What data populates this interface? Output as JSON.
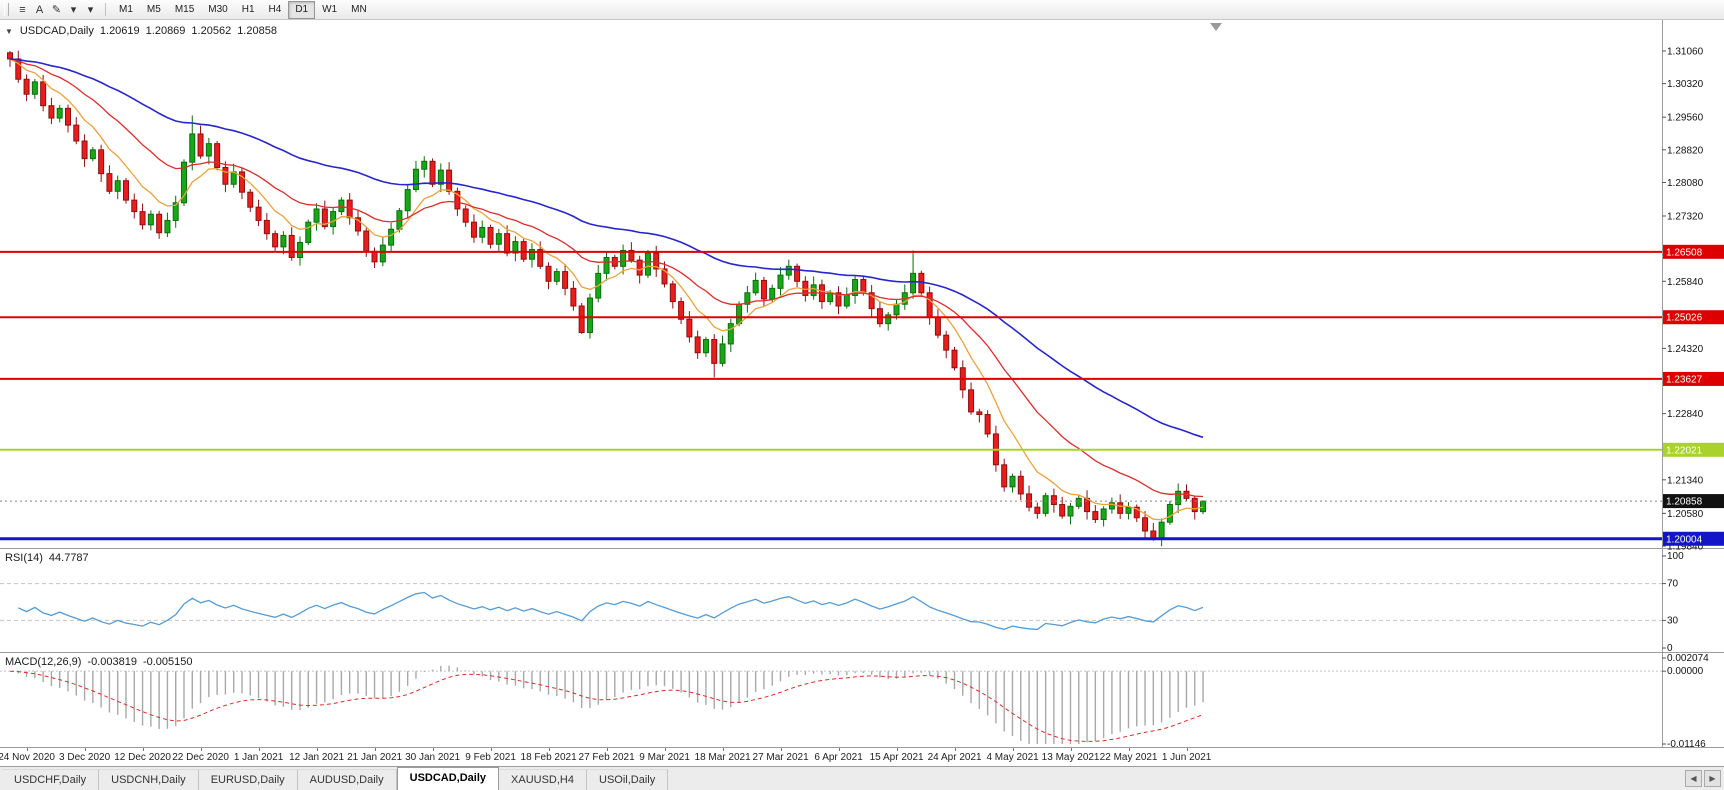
{
  "toolbar": {
    "icons": [
      {
        "name": "menu-icon",
        "glyph": "≡"
      },
      {
        "name": "text-tool-icon",
        "glyph": "A"
      },
      {
        "name": "draw-tool-icon",
        "glyph": "✎"
      },
      {
        "name": "draw-tool-dropdown-icon",
        "glyph": "▾"
      },
      {
        "name": "indicator-dropdown-icon",
        "glyph": "▾"
      }
    ],
    "timeframes": [
      "M1",
      "M5",
      "M15",
      "M30",
      "H1",
      "H4",
      "D1",
      "W1",
      "MN"
    ],
    "active_timeframe": "D1"
  },
  "chart": {
    "symbol": "USDCAD,Daily",
    "open": "1.20619",
    "high": "1.20869",
    "low": "1.20562",
    "close": "1.20858",
    "scale_ticks": [
      "1.31060",
      "1.30320",
      "1.29560",
      "1.28820",
      "1.28080",
      "1.27320",
      "1.25840",
      "1.24320",
      "1.22840",
      "1.21340",
      "1.20580",
      "1.19840"
    ],
    "hlines": [
      {
        "price": 1.26508,
        "label": "1.26508",
        "color": "#dd0000",
        "width": 2
      },
      {
        "price": 1.25026,
        "label": "1.25026",
        "color": "#dd0000",
        "width": 2
      },
      {
        "price": 1.23627,
        "label": "1.23627",
        "color": "#dd0000",
        "width": 2
      },
      {
        "price": 1.22021,
        "label": "1.22021",
        "color": "#a9d32b",
        "width": 2
      },
      {
        "price": 1.20004,
        "label": "1.20004",
        "color": "#1414c8",
        "width": 3
      }
    ],
    "current_price": {
      "price": 1.20858,
      "label": "1.20858",
      "bg": "#111111"
    },
    "candle_closes": [
      1.3088,
      1.3042,
      1.3008,
      1.3036,
      1.2982,
      1.2954,
      1.2976,
      1.2938,
      1.2902,
      1.2862,
      1.2882,
      1.2828,
      1.2788,
      1.2812,
      1.2768,
      1.2742,
      1.2712,
      1.2736,
      1.2694,
      1.2722,
      1.2762,
      1.2854,
      1.2918,
      1.2868,
      1.2896,
      1.2842,
      1.2804,
      1.2832,
      1.2786,
      1.2752,
      1.2722,
      1.2692,
      1.2662,
      1.2688,
      1.2638,
      1.2672,
      1.2718,
      1.2748,
      1.2708,
      1.2742,
      1.2768,
      1.2728,
      1.2698,
      1.2652,
      1.2628,
      1.2666,
      1.2702,
      1.2744,
      1.2792,
      1.2838,
      1.2856,
      1.2804,
      1.2836,
      1.2788,
      1.2748,
      1.2718,
      1.2684,
      1.2706,
      1.2668,
      1.2692,
      1.2648,
      1.2674,
      1.2634,
      1.2656,
      1.2618,
      1.2584,
      1.2606,
      1.2568,
      1.2528,
      1.2468,
      1.2546,
      1.2602,
      1.2638,
      1.2618,
      1.2654,
      1.2632,
      1.2598,
      1.2648,
      1.2612,
      1.2578,
      1.2538,
      1.2498,
      1.2458,
      1.2422,
      1.2452,
      1.2398,
      1.2442,
      1.2488,
      1.2532,
      1.2558,
      1.2586,
      1.2544,
      1.2568,
      1.2598,
      1.2618,
      1.2584,
      1.2552,
      1.2576,
      1.2538,
      1.2558,
      1.2528,
      1.2552,
      1.2588,
      1.2558,
      1.2522,
      1.2488,
      1.2508,
      1.2532,
      1.2558,
      1.2602,
      1.2558,
      1.2502,
      1.2462,
      1.2428,
      1.2388,
      1.2338,
      1.2288,
      1.2282,
      1.2238,
      1.2168,
      1.2118,
      1.2142,
      1.2102,
      1.2072,
      1.2058,
      1.2098,
      1.2078,
      1.2052,
      1.2074,
      1.2092,
      1.2062,
      1.2044,
      1.2068,
      1.2082,
      1.2058,
      1.2072,
      1.2048,
      1.2018,
      1.2002,
      1.2038,
      1.2078,
      1.2108,
      1.2092,
      1.2062,
      1.20858
    ],
    "candle_overrides": {
      "0": {
        "o": 1.3102,
        "h": 1.3106
      },
      "22": {
        "h": 1.296
      },
      "69": {
        "l": 1.2465
      },
      "85": {
        "l": 1.2366
      },
      "109": {
        "h": 1.2654
      },
      "124": {
        "l": 1.2046
      },
      "138": {
        "l": 1.1996
      },
      "144": {
        "o": 1.20619,
        "h": 1.20869,
        "l": 1.20562,
        "c": 1.20858
      }
    },
    "ma_colors": {
      "fast": "#e8a33c",
      "medium": "#dd2c2c",
      "slow": "#2626cc"
    },
    "candle_colors": {
      "up_fill": "#17a817",
      "up_edge": "#0a6e0a",
      "down_fill": "#ea1c1c",
      "down_edge": "#8e0f0f"
    }
  },
  "rsi": {
    "label": "RSI(14)",
    "value": "44.7787",
    "scale": [
      "100",
      "70",
      "30",
      "0"
    ],
    "levels": [
      70,
      30
    ],
    "line_color": "#569bd2"
  },
  "macd": {
    "label": "MACD(12,26,9)",
    "value1": "-0.003819",
    "value2": "-0.005150",
    "scale": [
      "0.002074",
      "0.00000",
      "-0.01146"
    ],
    "range": [
      -0.01146,
      0.002074
    ],
    "histogram_color": "#a8a8a8",
    "signal_color": "#dd2c2c"
  },
  "dates": [
    "24 Nov 2020",
    "3 Dec 2020",
    "12 Dec 2020",
    "22 Dec 2020",
    "1 Jan 2021",
    "12 Jan 2021",
    "21 Jan 2021",
    "30 Jan 2021",
    "9 Feb 2021",
    "18 Feb 2021",
    "27 Feb 2021",
    "9 Mar 2021",
    "18 Mar 2021",
    "27 Mar 2021",
    "6 Apr 2021",
    "15 Apr 2021",
    "24 Apr 2021",
    "4 May 2021",
    "13 May 2021",
    "22 May 2021",
    "1 Jun 2021"
  ],
  "tabs": {
    "items": [
      "USDCHF,Daily",
      "USDCNH,Daily",
      "EURUSD,Daily",
      "AUDUSD,Daily",
      "USDCAD,Daily",
      "XAUUSD,H4",
      "USOil,Daily"
    ],
    "active": "USDCAD,Daily",
    "scroll_left_glyph": "◀",
    "scroll_right_glyph": "▶"
  }
}
